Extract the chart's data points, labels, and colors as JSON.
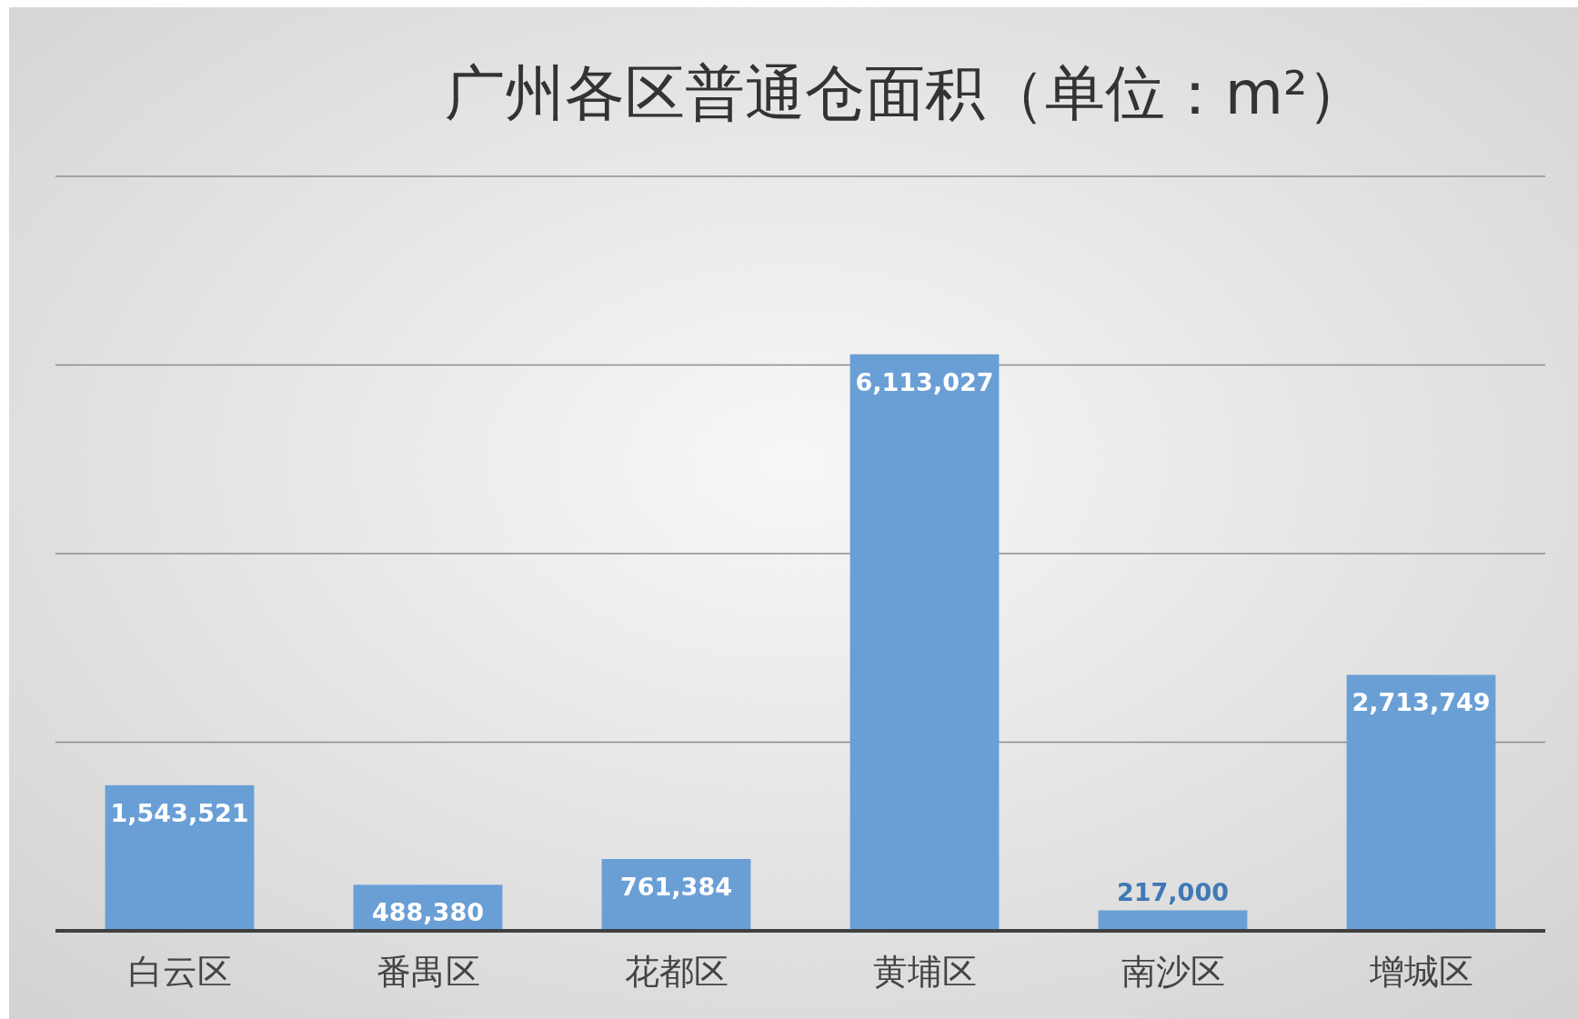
{
  "chart_data": {
    "type": "bar",
    "title": "广州各区普通仓面积（单位：m²）",
    "categories": [
      "白云区",
      "番禺区",
      "花都区",
      "黄埔区",
      "南沙区",
      "增城区"
    ],
    "values": [
      1543521,
      488380,
      761384,
      6113027,
      217000,
      2713749
    ],
    "value_labels": [
      "1,543,521",
      "488,380",
      "761,384",
      "6,113,027",
      "217,000",
      "2,713,749"
    ],
    "color": "#6a9fd6",
    "relative": false,
    "tick_labels": "x",
    "grid": "y"
  }
}
